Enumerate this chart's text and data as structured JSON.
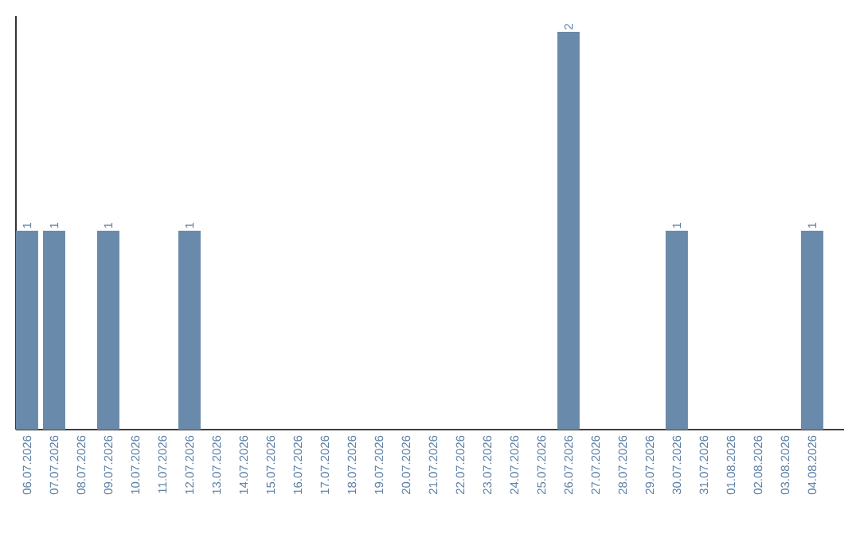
{
  "chart_data": {
    "type": "bar",
    "categories": [
      "06.07.2026",
      "07.07.2026",
      "08.07.2026",
      "09.07.2026",
      "10.07.2026",
      "11.07.2026",
      "12.07.2026",
      "13.07.2026",
      "14.07.2026",
      "15.07.2026",
      "16.07.2026",
      "17.07.2026",
      "18.07.2026",
      "19.07.2026",
      "20.07.2026",
      "21.07.2026",
      "22.07.2026",
      "23.07.2026",
      "24.07.2026",
      "25.07.2026",
      "26.07.2026",
      "27.07.2026",
      "28.07.2026",
      "29.07.2026",
      "30.07.2026",
      "31.07.2026",
      "01.08.2026",
      "02.08.2026",
      "03.08.2026",
      "04.08.2026"
    ],
    "values": [
      1,
      1,
      0,
      1,
      0,
      0,
      1,
      0,
      0,
      0,
      0,
      0,
      0,
      0,
      0,
      0,
      0,
      0,
      0,
      0,
      2,
      0,
      0,
      0,
      1,
      0,
      0,
      0,
      0,
      1
    ],
    "value_labels": [
      "1",
      "1",
      null,
      "1",
      null,
      null,
      "1",
      null,
      null,
      null,
      null,
      null,
      null,
      null,
      null,
      null,
      null,
      null,
      null,
      null,
      "2",
      null,
      null,
      null,
      "1",
      null,
      null,
      null,
      null,
      "1"
    ],
    "color": "#6a8aab",
    "ylim": [
      0,
      2.08
    ],
    "tick_labels": "x"
  }
}
